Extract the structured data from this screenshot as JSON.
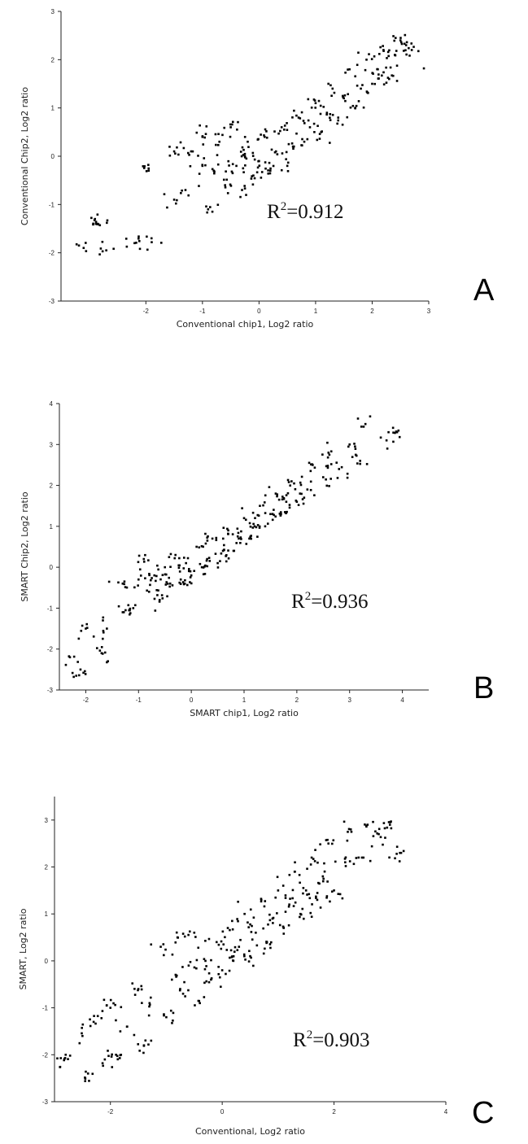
{
  "chart_data": [
    {
      "type": "scatter",
      "panel": "A",
      "xlabel": "Conventional chip1, Log2 ratio",
      "ylabel": "Conventional Chip2, Log2 ratio",
      "xlim": [
        -3.5,
        3.0
      ],
      "ylim": [
        -3,
        3
      ],
      "xticks": [
        -2,
        -1,
        0,
        1,
        2,
        3
      ],
      "yticks": [
        -3,
        -2,
        -1,
        0,
        1,
        2,
        3
      ],
      "annotation": {
        "base": "R",
        "sup": "2",
        "rest": "=0.912"
      },
      "r2": 0.912,
      "series": [
        {
          "points": [
            [
              -3.1,
              -1.9
            ],
            [
              -2.9,
              -1.3
            ],
            [
              -2.85,
              -1.4
            ],
            [
              -2.7,
              -1.95
            ],
            [
              -2.2,
              -1.8
            ],
            [
              -1.9,
              -1.7
            ],
            [
              -1.95,
              -0.3
            ],
            [
              -1.5,
              -0.9
            ],
            [
              -1.5,
              0.1
            ],
            [
              -1.3,
              -0.7
            ],
            [
              -1.2,
              0.1
            ],
            [
              -1.0,
              -0.2
            ],
            [
              -1.0,
              0.4
            ],
            [
              -0.9,
              -1.1
            ],
            [
              -0.8,
              -0.3
            ],
            [
              -0.7,
              0.3
            ],
            [
              -0.6,
              -0.6
            ],
            [
              -0.5,
              0.6
            ],
            [
              -0.4,
              -0.2
            ],
            [
              -0.3,
              -0.7
            ],
            [
              -0.25,
              0.0
            ],
            [
              -0.2,
              0.3
            ],
            [
              -0.1,
              -0.4
            ],
            [
              0.0,
              -0.1
            ],
            [
              0.1,
              0.4
            ],
            [
              0.2,
              -0.3
            ],
            [
              0.3,
              0.1
            ],
            [
              0.4,
              0.6
            ],
            [
              0.5,
              -0.2
            ],
            [
              0.6,
              0.2
            ],
            [
              0.7,
              0.8
            ],
            [
              0.8,
              0.3
            ],
            [
              0.9,
              0.6
            ],
            [
              1.0,
              1.1
            ],
            [
              1.1,
              0.5
            ],
            [
              1.2,
              0.9
            ],
            [
              1.3,
              1.4
            ],
            [
              1.4,
              0.8
            ],
            [
              1.5,
              1.2
            ],
            [
              1.6,
              1.8
            ],
            [
              1.7,
              1.0
            ],
            [
              1.8,
              1.4
            ],
            [
              1.9,
              2.0
            ],
            [
              2.0,
              1.5
            ],
            [
              2.1,
              1.8
            ],
            [
              2.2,
              2.2
            ],
            [
              2.3,
              1.6
            ],
            [
              2.4,
              2.1
            ],
            [
              2.5,
              2.4
            ],
            [
              2.6,
              2.3
            ],
            [
              2.7,
              2.2
            ]
          ]
        }
      ]
    },
    {
      "type": "scatter",
      "panel": "B",
      "xlabel": "SMART chip1, Log2 ratio",
      "ylabel": "SMART Chip2, Log2 ratio",
      "xlim": [
        -2.5,
        4.5
      ],
      "ylim": [
        -3,
        4
      ],
      "xticks": [
        -2,
        -1,
        0,
        1,
        2,
        3,
        4
      ],
      "yticks": [
        -3,
        -2,
        -1,
        0,
        1,
        2,
        3,
        4
      ],
      "annotation": {
        "base": "R",
        "sup": "2",
        "rest": "=0.936"
      },
      "r2": 0.936,
      "series": [
        {
          "points": [
            [
              -2.3,
              -2.2
            ],
            [
              -2.1,
              -2.5
            ],
            [
              -2.0,
              -1.5
            ],
            [
              -1.7,
              -2.1
            ],
            [
              -1.6,
              -1.5
            ],
            [
              -1.3,
              -1.1
            ],
            [
              -1.3,
              -0.4
            ],
            [
              -1.1,
              -1.0
            ],
            [
              -1.0,
              -0.3
            ],
            [
              -0.9,
              0.2
            ],
            [
              -0.8,
              -0.6
            ],
            [
              -0.7,
              -0.2
            ],
            [
              -0.6,
              -0.8
            ],
            [
              -0.5,
              0.0
            ],
            [
              -0.4,
              -0.4
            ],
            [
              -0.3,
              0.3
            ],
            [
              -0.2,
              -0.3
            ],
            [
              -0.1,
              0.1
            ],
            [
              0.0,
              -0.2
            ],
            [
              0.1,
              0.5
            ],
            [
              0.2,
              0.0
            ],
            [
              0.3,
              0.2
            ],
            [
              0.4,
              0.7
            ],
            [
              0.5,
              0.1
            ],
            [
              0.6,
              0.4
            ],
            [
              0.7,
              0.9
            ],
            [
              0.8,
              0.4
            ],
            [
              0.9,
              0.7
            ],
            [
              1.0,
              1.2
            ],
            [
              1.1,
              0.7
            ],
            [
              1.2,
              1.0
            ],
            [
              1.3,
              1.5
            ],
            [
              1.4,
              1.0
            ],
            [
              1.5,
              1.3
            ],
            [
              1.6,
              1.8
            ],
            [
              1.7,
              1.3
            ],
            [
              1.8,
              1.6
            ],
            [
              1.9,
              2.1
            ],
            [
              2.0,
              1.6
            ],
            [
              2.2,
              1.9
            ],
            [
              2.3,
              2.5
            ],
            [
              2.5,
              2.2
            ],
            [
              2.6,
              2.8
            ],
            [
              2.8,
              2.4
            ],
            [
              3.0,
              3.0
            ],
            [
              3.2,
              2.6
            ],
            [
              3.3,
              3.5
            ],
            [
              3.7,
              3.1
            ],
            [
              3.9,
              3.3
            ]
          ]
        }
      ]
    },
    {
      "type": "scatter",
      "panel": "C",
      "xlabel": "Conventional, Log2 ratio",
      "ylabel": "SMART, Log2 ratio",
      "xlim": [
        -3,
        4
      ],
      "ylim": [
        -3,
        3.5
      ],
      "xticks": [
        -2,
        0,
        2,
        4
      ],
      "yticks": [
        -3,
        -2,
        -1,
        0,
        1,
        2,
        3
      ],
      "annotation": {
        "base": "R",
        "sup": "2",
        "rest": "=0.903"
      },
      "r2": 0.903,
      "series": [
        {
          "points": [
            [
              -3.0,
              -2.3
            ],
            [
              -2.8,
              -2.0
            ],
            [
              -2.5,
              -1.6
            ],
            [
              -2.4,
              -2.4
            ],
            [
              -2.3,
              -1.3
            ],
            [
              -2.1,
              -2.1
            ],
            [
              -2.0,
              -1.0
            ],
            [
              -1.9,
              -2.0
            ],
            [
              -1.7,
              -1.4
            ],
            [
              -1.5,
              -0.6
            ],
            [
              -1.4,
              -1.8
            ],
            [
              -1.3,
              -0.9
            ],
            [
              -1.1,
              0.3
            ],
            [
              -1.0,
              -1.2
            ],
            [
              -0.9,
              -0.4
            ],
            [
              -0.8,
              0.5
            ],
            [
              -0.7,
              -0.7
            ],
            [
              -0.6,
              -0.1
            ],
            [
              -0.5,
              0.6
            ],
            [
              -0.4,
              -0.9
            ],
            [
              -0.3,
              0.0
            ],
            [
              -0.2,
              -0.4
            ],
            [
              -0.1,
              0.4
            ],
            [
              0.0,
              -0.2
            ],
            [
              0.1,
              0.7
            ],
            [
              0.2,
              0.0
            ],
            [
              0.3,
              0.3
            ],
            [
              0.4,
              1.0
            ],
            [
              0.5,
              0.1
            ],
            [
              0.6,
              0.6
            ],
            [
              0.7,
              1.3
            ],
            [
              0.8,
              0.4
            ],
            [
              0.9,
              0.9
            ],
            [
              1.0,
              1.5
            ],
            [
              1.1,
              0.7
            ],
            [
              1.2,
              1.2
            ],
            [
              1.3,
              1.9
            ],
            [
              1.4,
              1.0
            ],
            [
              1.5,
              1.5
            ],
            [
              1.6,
              2.2
            ],
            [
              1.7,
              1.3
            ],
            [
              1.8,
              1.8
            ],
            [
              1.9,
              2.5
            ],
            [
              2.0,
              1.5
            ],
            [
              2.2,
              2.1
            ],
            [
              2.3,
              2.8
            ],
            [
              2.5,
              2.2
            ],
            [
              2.6,
              2.9
            ],
            [
              2.8,
              2.7
            ],
            [
              3.0,
              2.9
            ],
            [
              3.2,
              2.3
            ]
          ]
        }
      ]
    }
  ]
}
